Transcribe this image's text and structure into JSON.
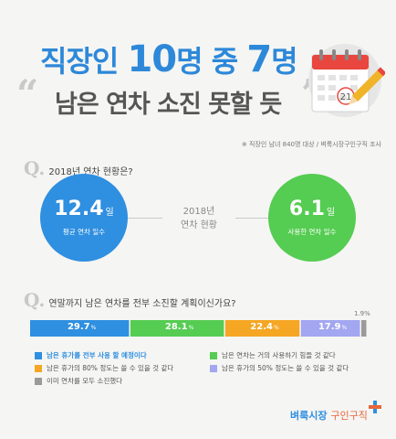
{
  "header": {
    "title_line1_a": "직장인 ",
    "title_line1_b": "10",
    "title_line1_c": "명 중 ",
    "title_line1_d": "7",
    "title_line1_e": "명",
    "title_line2": "남은 연차 소진 못할 듯"
  },
  "calendar": {
    "date": "21",
    "color_red": "#e8463e",
    "color_pencil": "#f0b429"
  },
  "note": "※ 직장인 남녀 840명 대상 / 벼룩시장구인구직 조사",
  "q1": {
    "mark": "Q.",
    "text": "2018년 연차 현황은?"
  },
  "stats": [
    {
      "value": "12.4",
      "unit": "일",
      "label": "평균 연차 일수",
      "color": "#2f8fe0"
    },
    {
      "value": "6.1",
      "unit": "일",
      "label": "사용한 연차 일수",
      "color": "#55cc52"
    }
  ],
  "mid_label_line1": "2018년",
  "mid_label_line2": "연차 현황",
  "q2": {
    "mark": "Q.",
    "text": "연말까지 남은 연차를 전부 소진할 계획이신가요?"
  },
  "chart_data": {
    "type": "bar",
    "orientation": "horizontal-stacked",
    "unit": "%",
    "series": [
      {
        "name": "남은 휴가를 전부 사용 할 예정이다",
        "value": 29.7,
        "color": "#2f8fe0"
      },
      {
        "name": "남은 연차는 거의 사용하기 힘들 것 같다",
        "value": 28.1,
        "color": "#55cc52"
      },
      {
        "name": "남은 휴가의 80% 정도는 쓸 수 있을 것 같다",
        "value": 22.4,
        "color": "#f5a623"
      },
      {
        "name": "남은 휴가의 50% 정도는 쓸 수 있을 것 같다",
        "value": 17.9,
        "color": "#a3a6f0"
      },
      {
        "name": "이미 연차를 모두 소진했다",
        "value": 1.9,
        "color": "#9a9a9a"
      }
    ]
  },
  "pct_sign": "%",
  "brand": {
    "name_a": "벼룩시장",
    "name_b": "구인구직"
  }
}
